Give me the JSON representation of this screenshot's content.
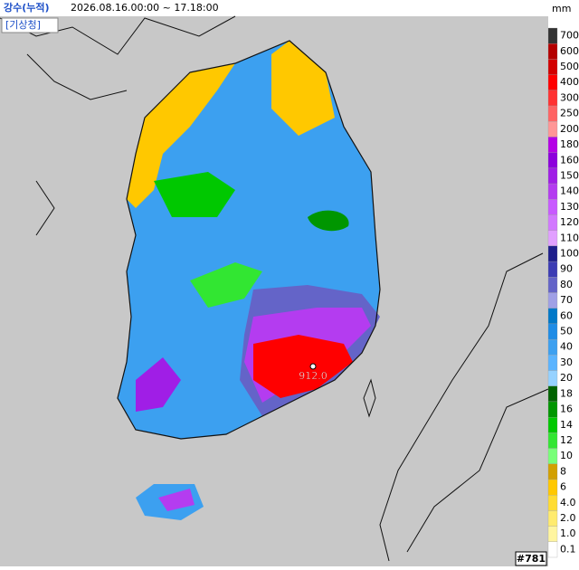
{
  "header": {
    "title": "강수(누적)",
    "period": "2026.08.16.00:00 ~ 17.18:00",
    "agency": "[기상청]"
  },
  "legend": {
    "unit": "mm",
    "entries": [
      {
        "label": "700",
        "color": "#333333"
      },
      {
        "label": "600",
        "color": "#b40000"
      },
      {
        "label": "500",
        "color": "#d20000"
      },
      {
        "label": "400",
        "color": "#ff0000"
      },
      {
        "label": "300",
        "color": "#ff3232"
      },
      {
        "label": "250",
        "color": "#ff6464"
      },
      {
        "label": "200",
        "color": "#ff9696"
      },
      {
        "label": "180",
        "color": "#b400e6"
      },
      {
        "label": "160",
        "color": "#8c00dc"
      },
      {
        "label": "150",
        "color": "#a01ee6"
      },
      {
        "label": "140",
        "color": "#b43cf0"
      },
      {
        "label": "130",
        "color": "#c85aff"
      },
      {
        "label": "120",
        "color": "#d278ff"
      },
      {
        "label": "110",
        "color": "#e1a0ff"
      },
      {
        "label": "100",
        "color": "#1e1e8c"
      },
      {
        "label": "90",
        "color": "#3c3cb4"
      },
      {
        "label": "80",
        "color": "#6464c8"
      },
      {
        "label": "70",
        "color": "#a0a0e6"
      },
      {
        "label": "60",
        "color": "#0078c8"
      },
      {
        "label": "50",
        "color": "#1e8ce6"
      },
      {
        "label": "40",
        "color": "#3ca0f0"
      },
      {
        "label": "30",
        "color": "#5ab4ff"
      },
      {
        "label": "20",
        "color": "#96d2ff"
      },
      {
        "label": "18",
        "color": "#006400"
      },
      {
        "label": "16",
        "color": "#009600"
      },
      {
        "label": "14",
        "color": "#00c800"
      },
      {
        "label": "12",
        "color": "#32e632"
      },
      {
        "label": "10",
        "color": "#78ff78"
      },
      {
        "label": "8",
        "color": "#d2a000"
      },
      {
        "label": "6",
        "color": "#ffc800"
      },
      {
        "label": "4.0",
        "color": "#ffdc32"
      },
      {
        "label": "2.0",
        "color": "#ffeb6e"
      },
      {
        "label": "1.0",
        "color": "#fff5a0"
      },
      {
        "label": "0.1",
        "color": "#ffffff"
      }
    ]
  },
  "map": {
    "max_label": "912.0"
  },
  "footer": {
    "id": "#781"
  }
}
